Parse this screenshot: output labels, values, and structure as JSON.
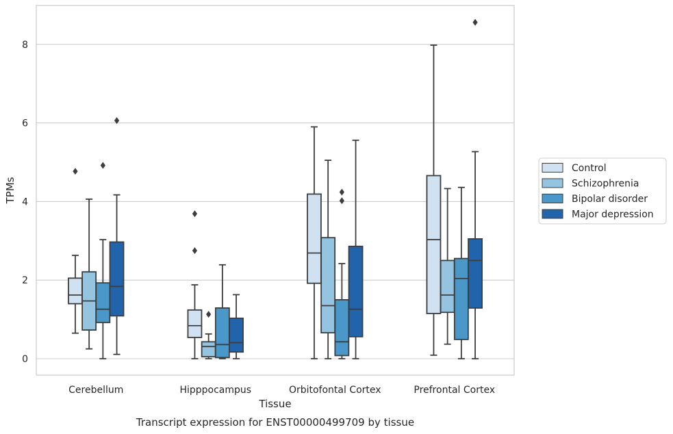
{
  "chart_data": {
    "type": "box",
    "title": "Transcript expression for ENST00000499709 by tissue",
    "xlabel": "Tissue",
    "ylabel": "TPMs",
    "ylim": [
      -0.4,
      9.0
    ],
    "yticks": [
      0,
      2,
      4,
      6,
      8
    ],
    "grid": true,
    "legend_position": "right",
    "categories": [
      "Cerebellum",
      "Hipppocampus",
      "Orbitofontal Cortex",
      "Prefrontal Cortex"
    ],
    "series": [
      {
        "name": "Control",
        "color": "#d0e1f2",
        "boxes": [
          {
            "min": 0.65,
            "q1": 1.4,
            "median": 1.62,
            "q3": 2.05,
            "max": 2.63,
            "outliers": [
              4.77
            ]
          },
          {
            "min": 0.0,
            "q1": 0.54,
            "median": 0.84,
            "q3": 1.24,
            "max": 1.88,
            "outliers": [
              2.75,
              3.69
            ]
          },
          {
            "min": 0.0,
            "q1": 1.92,
            "median": 2.69,
            "q3": 4.19,
            "max": 5.9,
            "outliers": []
          },
          {
            "min": 0.09,
            "q1": 1.15,
            "median": 3.03,
            "q3": 4.66,
            "max": 7.98,
            "outliers": []
          }
        ]
      },
      {
        "name": "Schizophrenia",
        "color": "#94c4df",
        "boxes": [
          {
            "min": 0.25,
            "q1": 0.73,
            "median": 1.47,
            "q3": 2.21,
            "max": 4.06,
            "outliers": []
          },
          {
            "min": 0.0,
            "q1": 0.05,
            "median": 0.31,
            "q3": 0.43,
            "max": 0.63,
            "outliers": [
              1.13
            ]
          },
          {
            "min": 0.0,
            "q1": 0.66,
            "median": 1.35,
            "q3": 3.08,
            "max": 5.05,
            "outliers": []
          },
          {
            "min": 0.37,
            "q1": 1.18,
            "median": 1.62,
            "q3": 2.5,
            "max": 4.33,
            "outliers": []
          }
        ]
      },
      {
        "name": "Bipolar disorder",
        "color": "#4a98c9",
        "boxes": [
          {
            "min": 0.0,
            "q1": 0.92,
            "median": 1.26,
            "q3": 1.93,
            "max": 3.03,
            "outliers": [
              4.92
            ]
          },
          {
            "min": 0.0,
            "q1": 0.03,
            "median": 0.36,
            "q3": 1.29,
            "max": 2.39,
            "outliers": []
          },
          {
            "min": 0.0,
            "q1": 0.08,
            "median": 0.43,
            "q3": 1.5,
            "max": 2.42,
            "outliers": [
              4.02,
              4.24
            ]
          },
          {
            "min": 0.0,
            "q1": 0.49,
            "median": 2.04,
            "q3": 2.55,
            "max": 4.36,
            "outliers": []
          }
        ]
      },
      {
        "name": "Major depression",
        "color": "#2164ab",
        "boxes": [
          {
            "min": 0.11,
            "q1": 1.09,
            "median": 1.84,
            "q3": 2.97,
            "max": 4.17,
            "outliers": [
              6.06
            ]
          },
          {
            "min": 0.0,
            "q1": 0.17,
            "median": 0.41,
            "q3": 1.03,
            "max": 1.63,
            "outliers": []
          },
          {
            "min": 0.0,
            "q1": 0.56,
            "median": 1.26,
            "q3": 2.86,
            "max": 5.56,
            "outliers": []
          },
          {
            "min": 0.0,
            "q1": 1.29,
            "median": 2.5,
            "q3": 3.05,
            "max": 5.27,
            "outliers": [
              8.56
            ]
          }
        ]
      }
    ]
  }
}
